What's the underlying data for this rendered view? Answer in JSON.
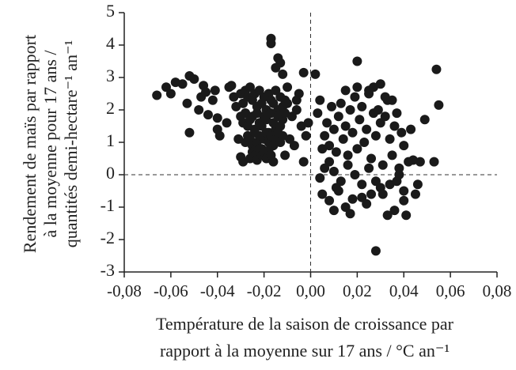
{
  "chart_data": {
    "type": "scatter",
    "xlabel": [
      "Température de la saison de croissance par",
      "rapport à la moyenne sur 17 ans / °C an⁻¹"
    ],
    "ylabel": [
      "Rendement de maïs par rapport",
      "à la moyenne pour 17 ans /",
      "quantités demi-hectare⁻¹ an⁻¹"
    ],
    "xlim": [
      -0.08,
      0.08
    ],
    "xticks": [
      {
        "value": -0.08,
        "label": "-0,08"
      },
      {
        "value": -0.06,
        "label": "-0,06"
      },
      {
        "value": -0.04,
        "label": "-0,04"
      },
      {
        "value": -0.02,
        "label": "-0,02"
      },
      {
        "value": 0,
        "label": "0,00"
      },
      {
        "value": 0.02,
        "label": "0,02"
      },
      {
        "value": 0.04,
        "label": "0,04"
      },
      {
        "value": 0.06,
        "label": "0,06"
      },
      {
        "value": 0.08,
        "label": "0,08"
      }
    ],
    "ylim": [
      -3,
      5
    ],
    "yticks": [
      -3,
      -2,
      -1,
      0,
      1,
      2,
      3,
      4,
      5
    ],
    "color": "#1a1a1a",
    "x": [
      -0.066,
      -0.062,
      -0.06,
      -0.058,
      -0.055,
      -0.052,
      -0.05,
      -0.053,
      -0.052,
      -0.048,
      -0.047,
      -0.046,
      -0.045,
      -0.044,
      -0.042,
      -0.041,
      -0.04,
      -0.039,
      -0.04,
      -0.036,
      -0.035,
      -0.034,
      -0.033,
      -0.032,
      -0.031,
      -0.03,
      -0.029,
      -0.028,
      -0.03,
      -0.029,
      -0.028,
      -0.027,
      -0.026,
      -0.025,
      -0.024,
      -0.023,
      -0.022,
      -0.021,
      -0.02,
      -0.019,
      -0.018,
      -0.017,
      -0.016,
      -0.015,
      -0.014,
      -0.013,
      -0.012,
      -0.011,
      -0.01,
      -0.03,
      -0.029,
      -0.028,
      -0.027,
      -0.026,
      -0.025,
      -0.024,
      -0.023,
      -0.022,
      -0.021,
      -0.02,
      -0.019,
      -0.018,
      -0.017,
      -0.016,
      -0.015,
      -0.014,
      -0.013,
      -0.012,
      -0.011,
      -0.028,
      -0.027,
      -0.026,
      -0.025,
      -0.024,
      -0.023,
      -0.022,
      -0.021,
      -0.02,
      -0.019,
      -0.018,
      -0.017,
      -0.016,
      -0.015,
      -0.014,
      -0.013,
      -0.012,
      -0.026,
      -0.025,
      -0.024,
      -0.023,
      -0.022,
      -0.021,
      -0.02,
      -0.019,
      -0.018,
      -0.017,
      -0.016,
      -0.017,
      -0.017,
      -0.014,
      -0.013,
      -0.015,
      -0.012,
      -0.003,
      0.002,
      -0.01,
      -0.005,
      -0.008,
      -0.006,
      -0.004,
      -0.002,
      -0.009,
      -0.007,
      -0.011,
      -0.001,
      -0.006,
      -0.003,
      0.02,
      0.054,
      0.055,
      0.053,
      0.049,
      0.044,
      0.045,
      0.04,
      0.041,
      0.033,
      0.028,
      0.036,
      0.03,
      0.026,
      0.022,
      0.018,
      0.015,
      0.012,
      0.01,
      0.008,
      0.005,
      0.004,
      0.006,
      0.003,
      0.004,
      0.006,
      0.007,
      0.008,
      0.009,
      0.01,
      0.011,
      0.012,
      0.013,
      0.014,
      0.015,
      0.016,
      0.017,
      0.018,
      0.019,
      0.02,
      0.021,
      0.022,
      0.023,
      0.024,
      0.025,
      0.026,
      0.027,
      0.028,
      0.029,
      0.03,
      0.031,
      0.032,
      0.033,
      0.034,
      0.035,
      0.036,
      0.037,
      0.038,
      0.039,
      0.04,
      0.042,
      0.043,
      0.005,
      0.008,
      0.01,
      0.013,
      0.016,
      0.019,
      0.022,
      0.025,
      0.028,
      0.031,
      0.034,
      0.037,
      0.04,
      0.015,
      0.02,
      0.025,
      0.03,
      0.035,
      0.038,
      0.046,
      0.047,
      0.032,
      0.027,
      0.024,
      0.017,
      0.011
    ],
    "y": [
      2.45,
      2.7,
      2.5,
      2.85,
      2.8,
      3.05,
      2.95,
      2.2,
      1.3,
      2.0,
      2.4,
      2.75,
      2.55,
      1.85,
      2.3,
      2.6,
      1.75,
      1.2,
      1.4,
      1.6,
      2.7,
      2.75,
      2.4,
      2.1,
      1.1,
      0.55,
      0.4,
      1.9,
      2.5,
      2.2,
      2.6,
      2.4,
      2.7,
      2.3,
      2.5,
      2.1,
      2.6,
      2.2,
      2.4,
      2.0,
      2.5,
      2.3,
      2.2,
      2.6,
      2.0,
      2.4,
      2.1,
      2.3,
      2.2,
      1.8,
      1.6,
      1.9,
      1.5,
      1.7,
      1.8,
      1.4,
      1.9,
      1.6,
      1.5,
      1.8,
      1.7,
      1.3,
      1.9,
      1.6,
      1.4,
      1.8,
      1.5,
      1.7,
      1.9,
      1.0,
      1.2,
      1.1,
      0.9,
      1.3,
      1.0,
      1.2,
      0.8,
      1.1,
      1.3,
      1.0,
      1.2,
      0.9,
      1.1,
      1.3,
      1.0,
      1.2,
      0.5,
      0.7,
      0.6,
      0.45,
      0.8,
      0.6,
      0.7,
      0.5,
      0.75,
      0.6,
      0.4,
      4.2,
      4.05,
      3.6,
      3.45,
      3.3,
      3.1,
      3.15,
      3.1,
      2.7,
      2.5,
      1.8,
      2.0,
      1.5,
      1.2,
      1.1,
      0.9,
      0.6,
      1.6,
      2.3,
      0.4,
      3.5,
      3.25,
      2.15,
      0.4,
      1.7,
      0.45,
      -0.6,
      -0.8,
      -1.25,
      -1.25,
      -2.35,
      -1.1,
      -0.4,
      -0.6,
      -0.3,
      -0.75,
      -1.0,
      -0.5,
      -1.1,
      -0.8,
      -0.6,
      -0.1,
      0.2,
      1.9,
      2.3,
      1.2,
      1.6,
      0.9,
      2.1,
      1.4,
      0.7,
      1.8,
      2.2,
      1.1,
      1.5,
      0.6,
      2.0,
      1.3,
      2.4,
      0.8,
      1.7,
      2.1,
      1.0,
      1.4,
      2.6,
      0.5,
      1.9,
      1.2,
      2.0,
      1.6,
      0.3,
      1.8,
      2.3,
      1.1,
      0.6,
      1.5,
      1.9,
      0.2,
      1.3,
      0.9,
      0.4,
      1.4,
      0.8,
      0.4,
      0.1,
      -0.2,
      0.3,
      0.0,
      -0.7,
      0.2,
      -0.2,
      -0.6,
      -0.3,
      -0.2,
      -0.5,
      2.6,
      2.7,
      2.5,
      2.8,
      2.3,
      0.0,
      -0.3,
      0.4,
      2.4,
      2.7,
      -0.9,
      -1.2,
      -0.4
    ]
  }
}
